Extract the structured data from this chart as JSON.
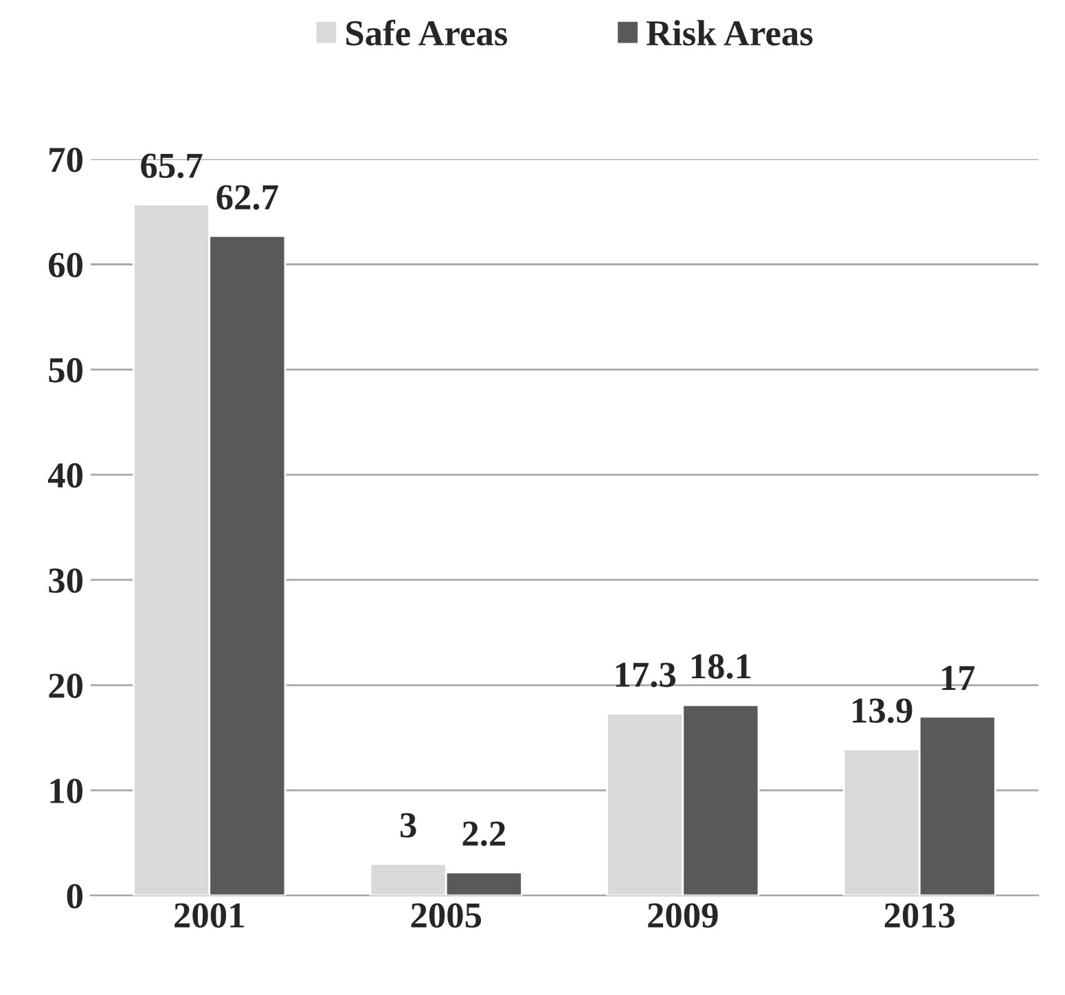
{
  "chart_data": {
    "type": "bar",
    "categories": [
      "2001",
      "2005",
      "2009",
      "2013"
    ],
    "series": [
      {
        "name": "Safe Areas",
        "color": "#d9d9d9",
        "values": [
          65.7,
          3,
          17.3,
          13.9
        ]
      },
      {
        "name": "Risk Areas",
        "color": "#595959",
        "values": [
          62.7,
          2.2,
          18.1,
          17
        ]
      }
    ],
    "ylim": [
      0,
      70
    ],
    "yticks": [
      0,
      10,
      20,
      30,
      40,
      50,
      60,
      70
    ],
    "grid": "y",
    "legend": "top",
    "data_labels": true
  }
}
